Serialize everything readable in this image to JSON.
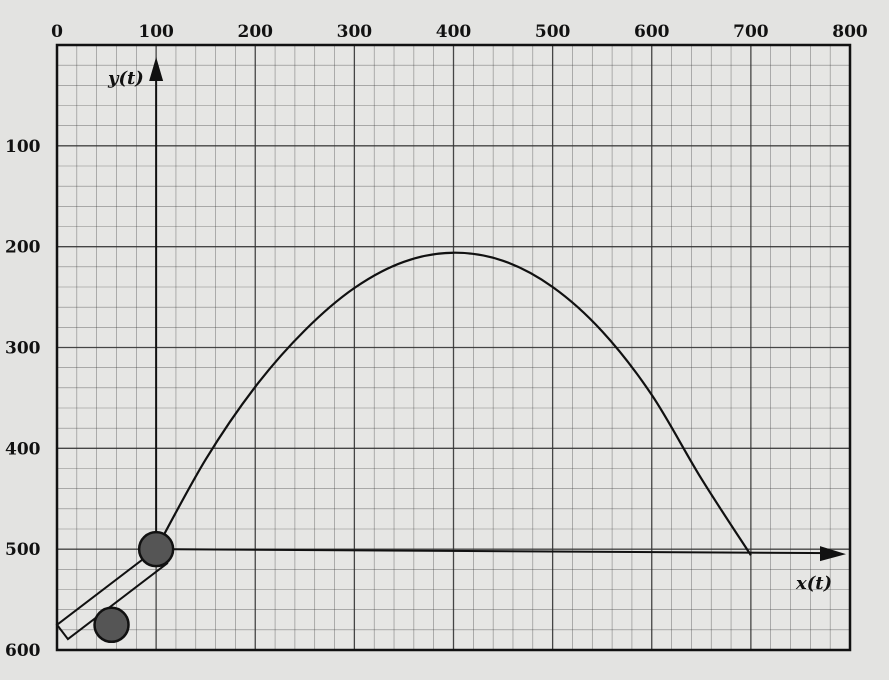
{
  "chart_data": {
    "type": "line",
    "title": "",
    "xlabel": "x(t)",
    "ylabel": "y(t)",
    "x_ticks": [
      "0",
      "100",
      "200",
      "300",
      "400",
      "500",
      "600",
      "700",
      "800"
    ],
    "y_ticks": [
      "100",
      "200",
      "300",
      "400",
      "500",
      "600"
    ],
    "xlim": [
      0,
      800
    ],
    "ylim": [
      0,
      600
    ],
    "y_axis_inverted": true,
    "grid": true,
    "colors": {
      "curve": "#111111",
      "grid": "#333333",
      "ball": "#555555",
      "paper": "#e3e3e1"
    },
    "series": [
      {
        "x": [
          100,
          150,
          200,
          250,
          300,
          350,
          400,
          450,
          500,
          550,
          600,
          650,
          700
        ],
        "y": [
          500,
          411,
          339,
          283,
          241,
          215,
          206,
          214,
          240,
          284,
          347,
          430,
          506
        ]
      }
    ],
    "balls": [
      {
        "x": 100,
        "y": 500
      },
      {
        "x": 55,
        "y": 575
      }
    ],
    "launcher_tube": [
      {
        "x": 0,
        "y": 575
      },
      {
        "x": 100,
        "y": 500
      }
    ]
  }
}
